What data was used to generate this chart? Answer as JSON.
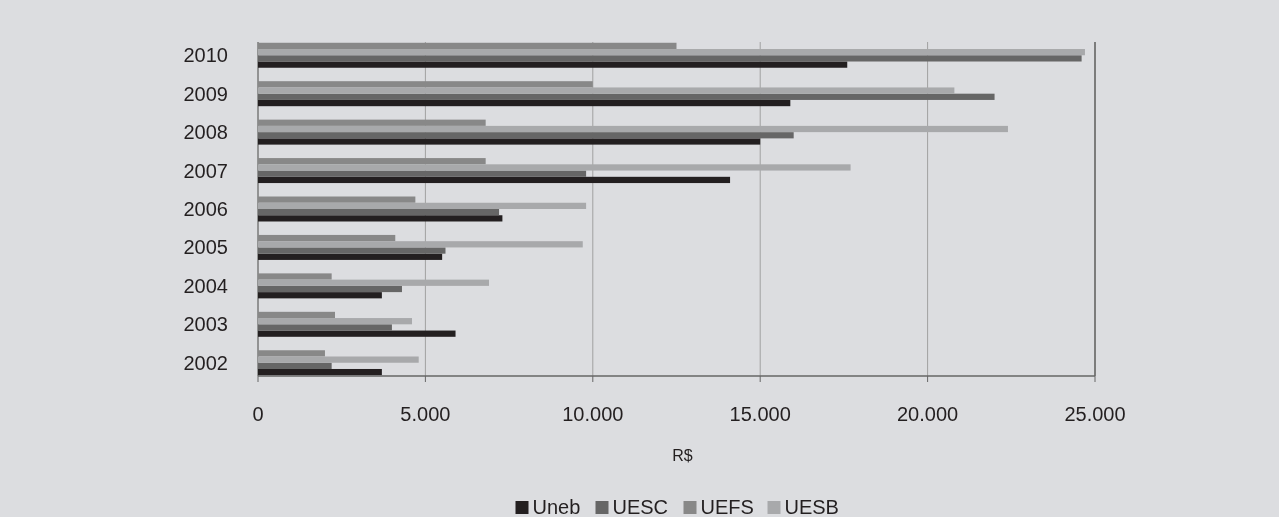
{
  "chart_data": {
    "type": "bar",
    "orientation": "horizontal",
    "xlabel": "R$",
    "categories": [
      "2010",
      "2009",
      "2008",
      "2007",
      "2006",
      "2005",
      "2004",
      "2003",
      "2002"
    ],
    "series": [
      {
        "name": "Uneb",
        "color": "#231f20",
        "values": [
          17600,
          15900,
          15000,
          14100,
          7300,
          5500,
          3700,
          5900,
          3700
        ]
      },
      {
        "name": "UESC",
        "color": "#666666",
        "values": [
          24600,
          22000,
          16000,
          9800,
          7200,
          5600,
          4300,
          4000,
          2200
        ]
      },
      {
        "name": "UEFS",
        "color": "#888888",
        "values": [
          12500,
          10000,
          6800,
          6800,
          4700,
          4100,
          2200,
          2300,
          2000
        ]
      },
      {
        "name": "UESB",
        "color": "#a8a9ab",
        "values": [
          24700,
          20800,
          22400,
          17700,
          9800,
          9700,
          6900,
          4600,
          4800
        ]
      }
    ],
    "xlim": [
      0,
      25000
    ],
    "xticks": [
      {
        "value": 0,
        "label": "0"
      },
      {
        "value": 5000,
        "label": "5.000"
      },
      {
        "value": 10000,
        "label": "10.000"
      },
      {
        "value": 15000,
        "label": "15.000"
      },
      {
        "value": 20000,
        "label": "20.000"
      },
      {
        "value": 25000,
        "label": "25.000"
      }
    ],
    "grid": "x",
    "legend": "bottom"
  }
}
